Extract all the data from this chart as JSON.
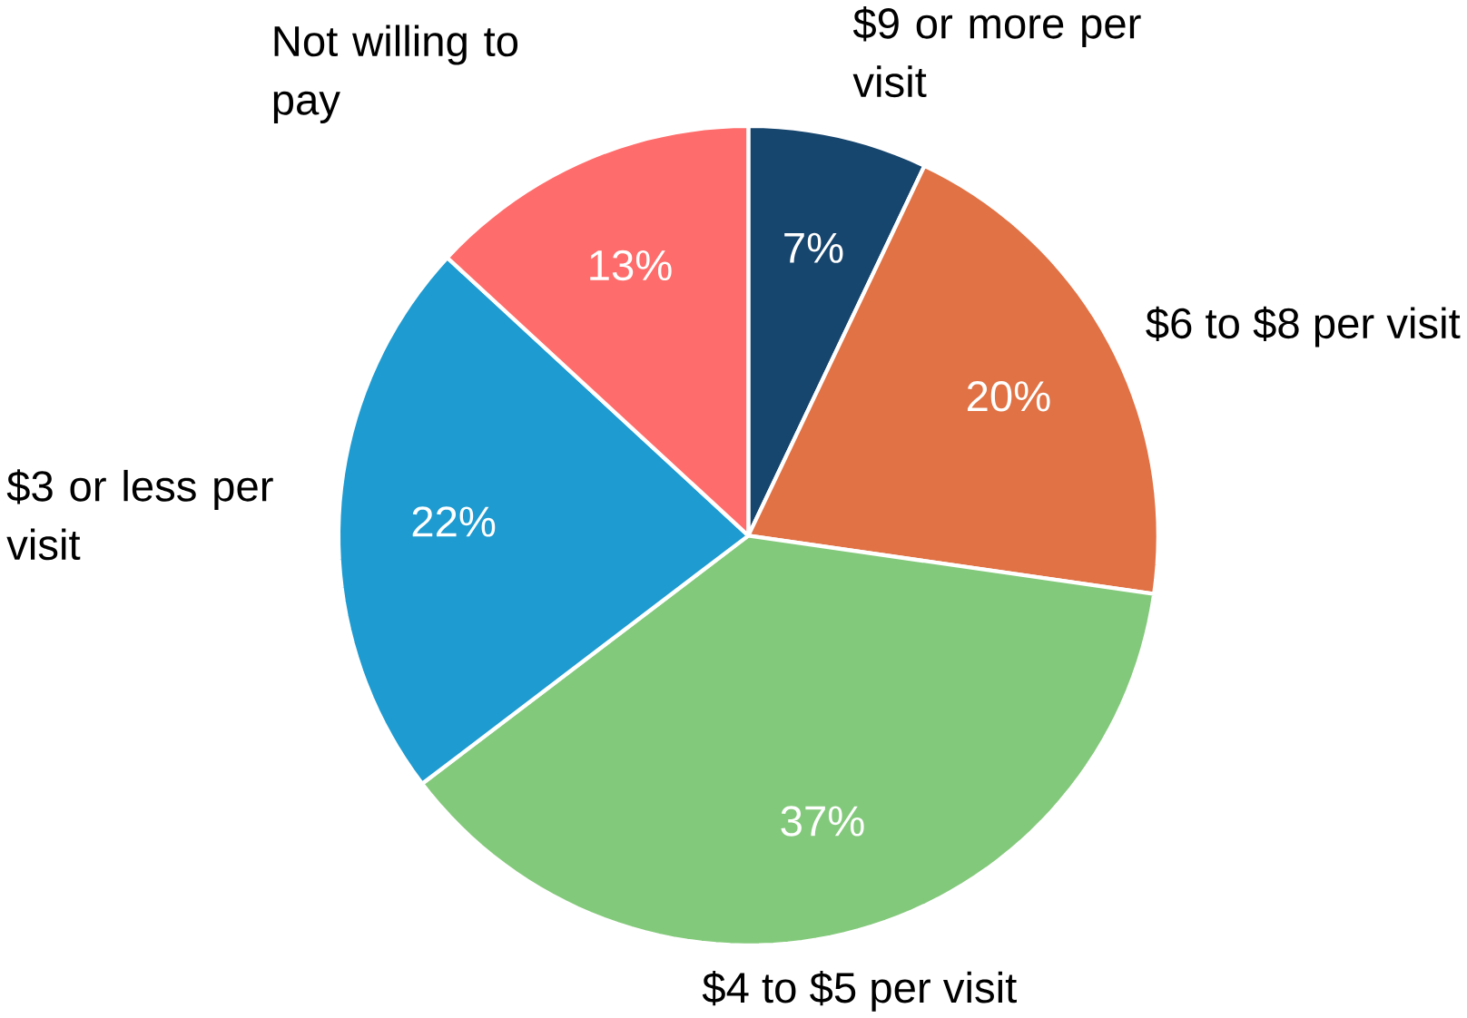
{
  "chart_data": {
    "type": "pie",
    "categories": [
      "$9  or more per visit",
      "$6 to $8 per visit",
      "$4 to $5 per visit",
      "$3 or less per visit",
      "Not willing to pay"
    ],
    "values": [
      7,
      20,
      37,
      22,
      13
    ],
    "value_labels": [
      "7%",
      "20%",
      "37%",
      "22%",
      "13%"
    ],
    "colors": [
      "#16456e",
      "#e07245",
      "#83c97b",
      "#1e9bd0",
      "#fe6d6b"
    ]
  }
}
